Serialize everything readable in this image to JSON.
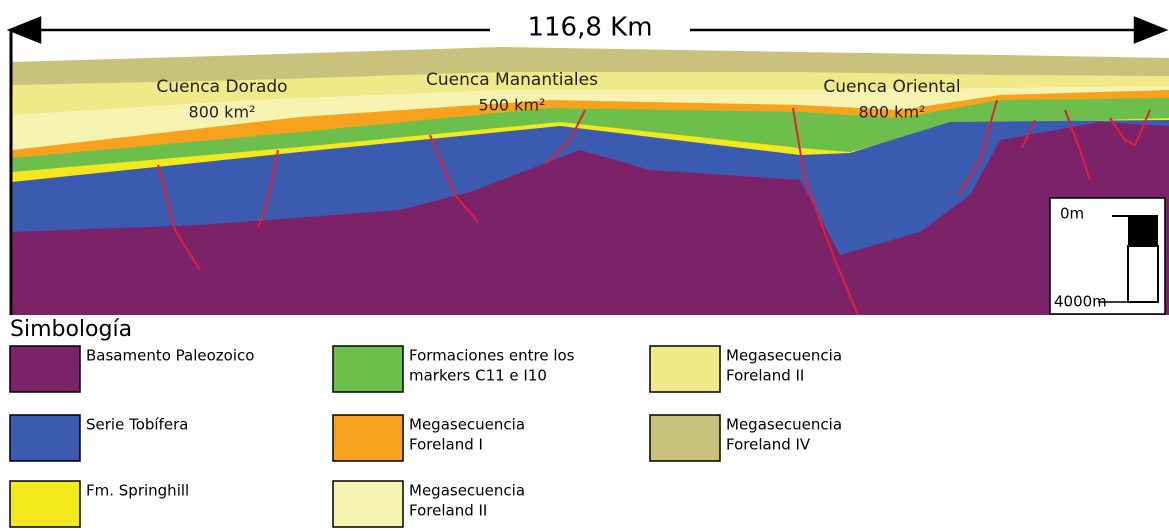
{
  "length_label": "116,8 Km",
  "basins": [
    {
      "name": "Cuenca Dorado",
      "area": "800 km²"
    },
    {
      "name": "Cuenca Manantiales",
      "area": "500 km²"
    },
    {
      "name": "Cuenca Oriental",
      "area": "800 km²"
    }
  ],
  "scale_bar": {
    "top": "0m",
    "bottom": "4000m"
  },
  "legend": {
    "title": "Simbología",
    "items": [
      {
        "lines": [
          "Basamento Paleozoico"
        ],
        "color": "#7c2268"
      },
      {
        "lines": [
          "Serie Tobífera"
        ],
        "color": "#3b5bb0"
      },
      {
        "lines": [
          "Fm. Springhill"
        ],
        "color": "#f2e81c"
      },
      {
        "lines": [
          "Formaciones entre los",
          "markers C11 e I10"
        ],
        "color": "#6cbf4a"
      },
      {
        "lines": [
          "Megasecuencia",
          "Foreland I"
        ],
        "color": "#f7a21c"
      },
      {
        "lines": [
          "Megasecuencia",
          "Foreland II"
        ],
        "color": "#f6f3b0"
      },
      {
        "lines": [
          "Megasecuencia",
          "Foreland II"
        ],
        "color": "#efe988"
      },
      {
        "lines": [
          "Megasecuencia",
          "Foreland IV"
        ],
        "color": "#c9c27c"
      }
    ]
  }
}
